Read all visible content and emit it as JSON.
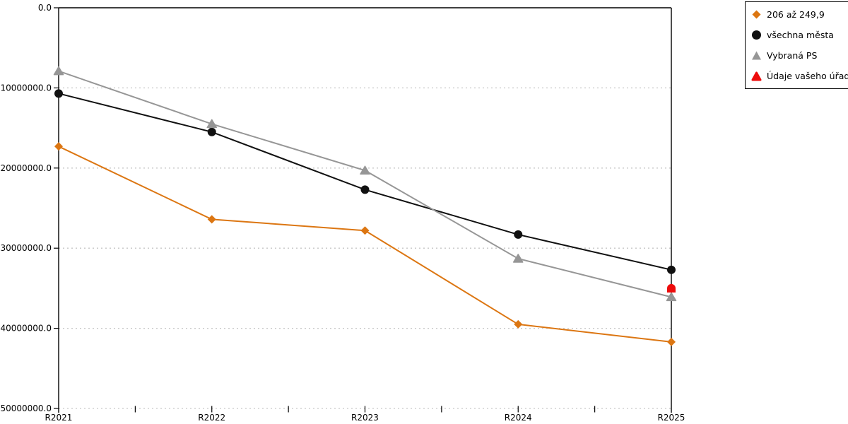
{
  "chart_data": {
    "type": "line",
    "title": "",
    "xlabel": "",
    "ylabel": "",
    "categories": [
      "R2021",
      "R2022",
      "R2023",
      "R2024",
      "R2025"
    ],
    "series": [
      {
        "name": "206 až 249,9",
        "marker": "diamond",
        "color": "#DC7612",
        "values": [
          -17300000,
          -26400000,
          -27800000,
          -39500000,
          -41700000
        ]
      },
      {
        "name": "všechna města",
        "marker": "circle",
        "color": "#111111",
        "values": [
          -10700000,
          -15500000,
          -22700000,
          -28300000,
          -32700000
        ]
      },
      {
        "name": "Vybraná PS",
        "marker": "triangle",
        "color": "#969696",
        "values": [
          -7900000,
          -14500000,
          -20300000,
          -31300000,
          -36100000
        ]
      },
      {
        "name": "Údaje vašeho úřadu",
        "marker": "dome",
        "color": "#ED0C0C",
        "values": [
          null,
          null,
          null,
          null,
          -35000000
        ]
      }
    ],
    "ylim": [
      -50000000,
      0
    ],
    "ytick_step": 10000000,
    "ytick_labels": [
      "0.0",
      "-10000000.0",
      "-20000000.0",
      "-30000000.0",
      "-40000000.0",
      "-50000000.0"
    ],
    "grid": "horizontal-dotted",
    "legend_position": "top-right",
    "colors": {
      "grid": "#C6C6C6",
      "axis": "#000000",
      "text": "#000000"
    }
  }
}
